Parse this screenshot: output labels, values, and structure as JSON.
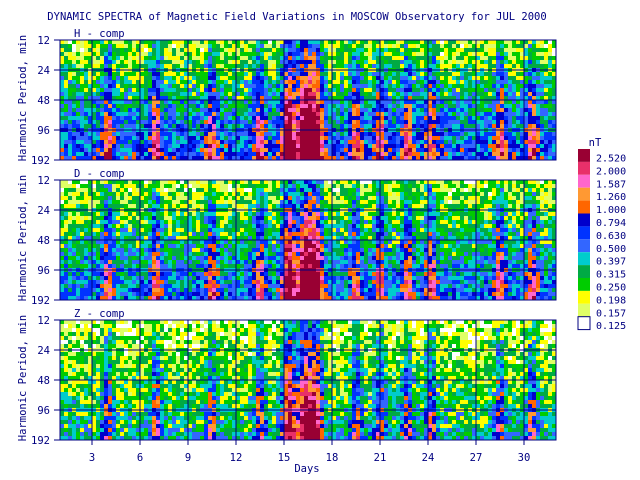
{
  "chart_data": {
    "type": "heatmap",
    "title": "DYNAMIC SPECTRA of Magnetic Field Variations in MOSCOW Observatory for JUL 2000",
    "xlabel": "Days",
    "ylabel": "Harmonic Period, min",
    "x_range": [
      1,
      32
    ],
    "x_ticks": [
      "3",
      "6",
      "9",
      "12",
      "15",
      "18",
      "21",
      "24",
      "27",
      "30"
    ],
    "y_ticks": [
      "12",
      "24",
      "48",
      "96",
      "192"
    ],
    "y_scale": "log2",
    "grid": true,
    "panels": [
      {
        "name": "H - comp"
      },
      {
        "name": "D - comp"
      },
      {
        "name": "Z - comp"
      }
    ],
    "colorbar": {
      "unit": "nT",
      "levels": [
        {
          "label": "2.520",
          "color": "#990033"
        },
        {
          "label": "2.000",
          "color": "#e8306a"
        },
        {
          "label": "1.587",
          "color": "#ff66cc"
        },
        {
          "label": "1.260",
          "color": "#ff9933"
        },
        {
          "label": "1.000",
          "color": "#ff6600"
        },
        {
          "label": "0.794",
          "color": "#0000cc"
        },
        {
          "label": "0.630",
          "color": "#0033ff"
        },
        {
          "label": "0.500",
          "color": "#3366ff"
        },
        {
          "label": "0.397",
          "color": "#00cccc"
        },
        {
          "label": "0.315",
          "color": "#00aa44"
        },
        {
          "label": "0.250",
          "color": "#00cc00"
        },
        {
          "label": "0.198",
          "color": "#ffff00"
        },
        {
          "label": "0.157",
          "color": "#e0ff66"
        },
        {
          "label": "0.125",
          "color": "#ffffff"
        }
      ]
    },
    "active_days": [
      4,
      7,
      10.5,
      13.5,
      15.3,
      16.3,
      17,
      19.5,
      21,
      22.7,
      24.2,
      28.5,
      30.5
    ]
  }
}
